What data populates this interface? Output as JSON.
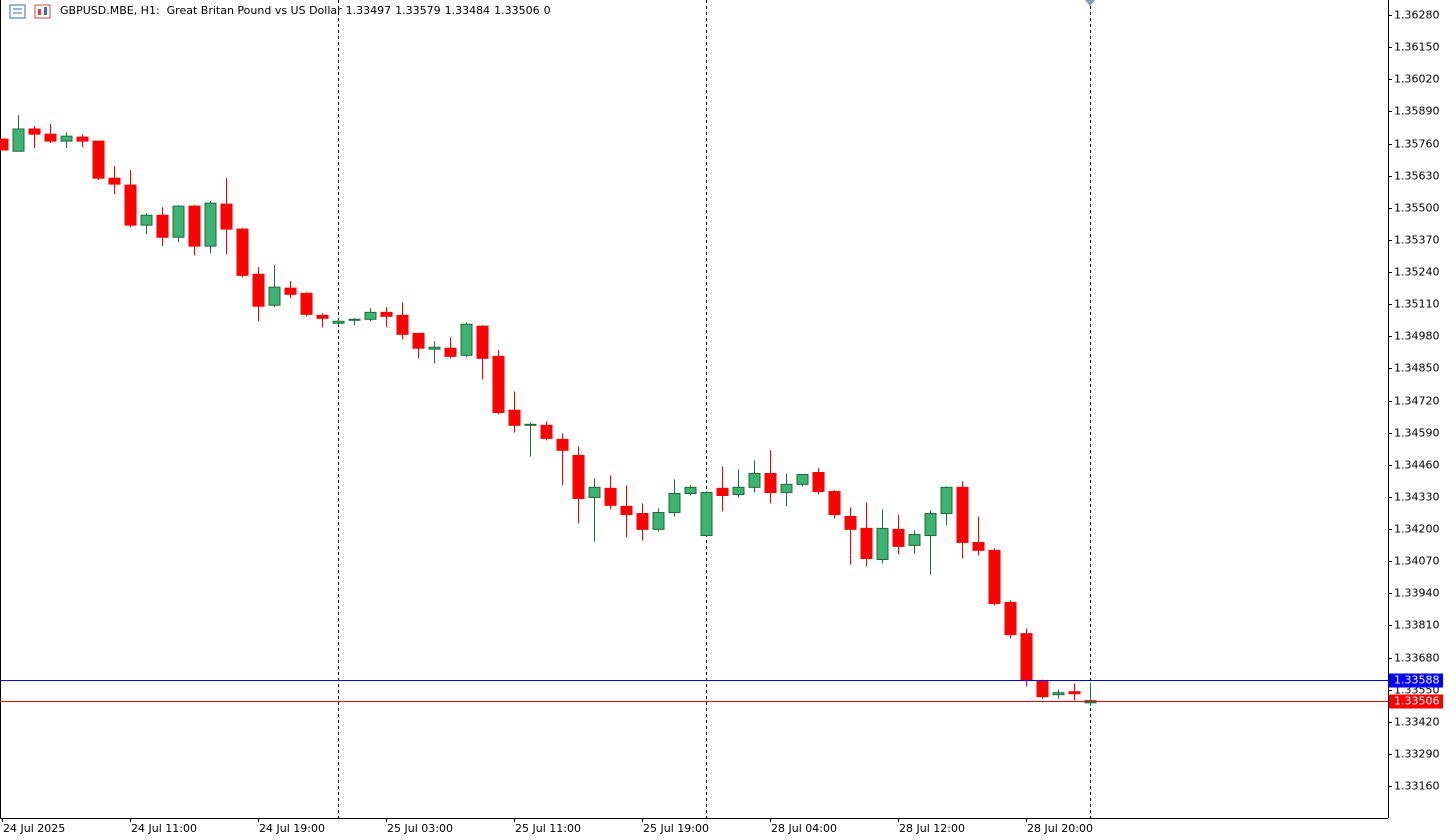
{
  "chart_data": {
    "type": "candlestick",
    "title": "GBPUSD.MBE, H1:  Great Britan Pound vs US Dollar",
    "volume": 0,
    "up_color": "#3cb371",
    "down_color": "#ff0000",
    "categories": [
      "24 Jul 2025",
      null,
      null,
      null,
      null,
      null,
      null,
      null,
      "24 Jul 11:00",
      null,
      null,
      null,
      null,
      null,
      null,
      null,
      "24 Jul 19:00",
      null,
      null,
      null,
      null,
      null,
      null,
      null,
      "25 Jul 03:00",
      null,
      null,
      null,
      null,
      null,
      null,
      null,
      "25 Jul 11:00",
      null,
      null,
      null,
      null,
      null,
      null,
      null,
      "25 Jul 19:00",
      null,
      null,
      null,
      null,
      null,
      null,
      null,
      "28 Jul 04:00",
      null,
      null,
      null,
      null,
      null,
      null,
      null,
      "28 Jul 12:00",
      null,
      null,
      null,
      null,
      null,
      null,
      null,
      "28 Jul 20:00",
      null,
      null,
      null,
      null
    ],
    "open": [
      1.35778,
      1.35729,
      1.35819,
      1.35798,
      1.3577,
      1.35786,
      1.3577,
      1.3562,
      1.35592,
      1.3543,
      1.3547,
      1.35381,
      1.35507,
      1.35345,
      1.35515,
      1.35414,
      1.35231,
      1.35106,
      1.35175,
      1.35154,
      1.35065,
      1.35033,
      1.35045,
      1.35049,
      1.35077,
      1.35065,
      1.34992,
      1.34928,
      1.34932,
      1.34903,
      1.35021,
      1.34899,
      1.34681,
      1.3462,
      1.3462,
      1.34563,
      1.34498,
      1.34328,
      1.34365,
      1.34292,
      1.34263,
      1.34199,
      1.34267,
      1.34344,
      1.34174,
      1.34365,
      1.3434,
      1.34369,
      1.34425,
      1.34348,
      1.34381,
      1.34429,
      1.34352,
      1.34251,
      1.34203,
      1.34077,
      1.34199,
      1.34134,
      1.34174,
      1.34263,
      1.34369,
      1.34146,
      1.34114,
      1.33903,
      1.33777,
      1.33587,
      1.3353,
      1.33542,
      1.33497
    ],
    "high": [
      1.35778,
      1.35875,
      1.35831,
      1.35839,
      1.35806,
      1.35798,
      1.3577,
      1.35669,
      1.35653,
      1.35478,
      1.35503,
      1.35511,
      1.35511,
      1.35527,
      1.3562,
      1.35418,
      1.3526,
      1.35268,
      1.35203,
      1.35158,
      1.35073,
      1.35049,
      1.35053,
      1.35094,
      1.35098,
      1.35118,
      1.34992,
      1.3496,
      1.34976,
      1.35037,
      1.35025,
      1.34924,
      1.34757,
      1.34632,
      1.34636,
      1.34587,
      1.34535,
      1.34405,
      1.34417,
      1.34377,
      1.34304,
      1.34284,
      1.34401,
      1.34377,
      1.34352,
      1.34454,
      1.34442,
      1.34478,
      1.34519,
      1.34425,
      1.34421,
      1.34446,
      1.34357,
      1.34288,
      1.34308,
      1.3428,
      1.34259,
      1.34195,
      1.34276,
      1.34373,
      1.34393,
      1.34251,
      1.34122,
      1.33911,
      1.33798,
      1.33591,
      1.33551,
      1.33575,
      1.33579
    ],
    "low": [
      1.35734,
      1.35729,
      1.35742,
      1.35762,
      1.35742,
      1.35746,
      1.35612,
      1.35555,
      1.35422,
      1.35393,
      1.35345,
      1.35361,
      1.35308,
      1.35316,
      1.35312,
      1.35219,
      1.35041,
      1.35098,
      1.35134,
      1.35061,
      1.35017,
      1.35025,
      1.35025,
      1.35041,
      1.35017,
      1.34968,
      1.34891,
      1.34871,
      1.34891,
      1.34895,
      1.34806,
      1.34664,
      1.34591,
      1.34494,
      1.34559,
      1.34377,
      1.34223,
      1.3415,
      1.3428,
      1.34166,
      1.34154,
      1.3419,
      1.34251,
      1.34336,
      1.3417,
      1.34271,
      1.34328,
      1.34348,
      1.34304,
      1.34292,
      1.34373,
      1.3434,
      1.34243,
      1.34057,
      1.34049,
      1.34061,
      1.34097,
      1.34101,
      1.34016,
      1.34215,
      1.34081,
      1.34093,
      1.33891,
      1.33757,
      1.33563,
      1.33514,
      1.33514,
      1.33506,
      1.33484
    ],
    "close": [
      1.35734,
      1.35819,
      1.35798,
      1.3577,
      1.3579,
      1.3577,
      1.3562,
      1.35596,
      1.3543,
      1.3547,
      1.35381,
      1.35507,
      1.35345,
      1.35519,
      1.35414,
      1.35227,
      1.35102,
      1.35179,
      1.3515,
      1.35069,
      1.35053,
      1.35041,
      1.35049,
      1.35077,
      1.35061,
      1.34988,
      1.34932,
      1.34936,
      1.34899,
      1.35029,
      1.34891,
      1.34672,
      1.3462,
      1.34624,
      1.34567,
      1.34519,
      1.34324,
      1.34369,
      1.34296,
      1.34259,
      1.34199,
      1.34267,
      1.34344,
      1.34369,
      1.34348,
      1.34336,
      1.34369,
      1.34425,
      1.34348,
      1.34381,
      1.34421,
      1.34352,
      1.34259,
      1.34199,
      1.34081,
      1.34203,
      1.3413,
      1.34178,
      1.34263,
      1.34369,
      1.34146,
      1.34114,
      1.33899,
      1.33773,
      1.33591,
      1.33522,
      1.33538,
      1.33534,
      1.33506
    ],
    "ylim": [
      1.33031,
      1.36341
    ],
    "yticks": [
      {
        "value": 1.3628,
        "label": "1.36280"
      },
      {
        "value": 1.3615,
        "label": "1.36150"
      },
      {
        "value": 1.3602,
        "label": "1.36020"
      },
      {
        "value": 1.3589,
        "label": "1.35890"
      },
      {
        "value": 1.3576,
        "label": "1.35760"
      },
      {
        "value": 1.3563,
        "label": "1.35630"
      },
      {
        "value": 1.355,
        "label": "1.35500"
      },
      {
        "value": 1.3537,
        "label": "1.35370"
      },
      {
        "value": 1.3524,
        "label": "1.35240"
      },
      {
        "value": 1.3511,
        "label": "1.35110"
      },
      {
        "value": 1.3498,
        "label": "1.34980"
      },
      {
        "value": 1.3485,
        "label": "1.34850"
      },
      {
        "value": 1.3472,
        "label": "1.34720"
      },
      {
        "value": 1.3459,
        "label": "1.34590"
      },
      {
        "value": 1.3446,
        "label": "1.34460"
      },
      {
        "value": 1.3433,
        "label": "1.34330"
      },
      {
        "value": 1.342,
        "label": "1.34200"
      },
      {
        "value": 1.3407,
        "label": "1.34070"
      },
      {
        "value": 1.3394,
        "label": "1.33940"
      },
      {
        "value": 1.3381,
        "label": "1.33810"
      },
      {
        "value": 1.3368,
        "label": "1.33680"
      },
      {
        "value": 1.3355,
        "label": "1.33550"
      },
      {
        "value": 1.3342,
        "label": "1.33420"
      },
      {
        "value": 1.3329,
        "label": "1.33290"
      },
      {
        "value": 1.3316,
        "label": "1.33160"
      }
    ],
    "price_lines": [
      {
        "value": 1.33588,
        "label": "1.33588",
        "color": "#0000ff"
      },
      {
        "value": 1.33506,
        "label": "1.33506",
        "color": "#ff0000"
      }
    ]
  }
}
